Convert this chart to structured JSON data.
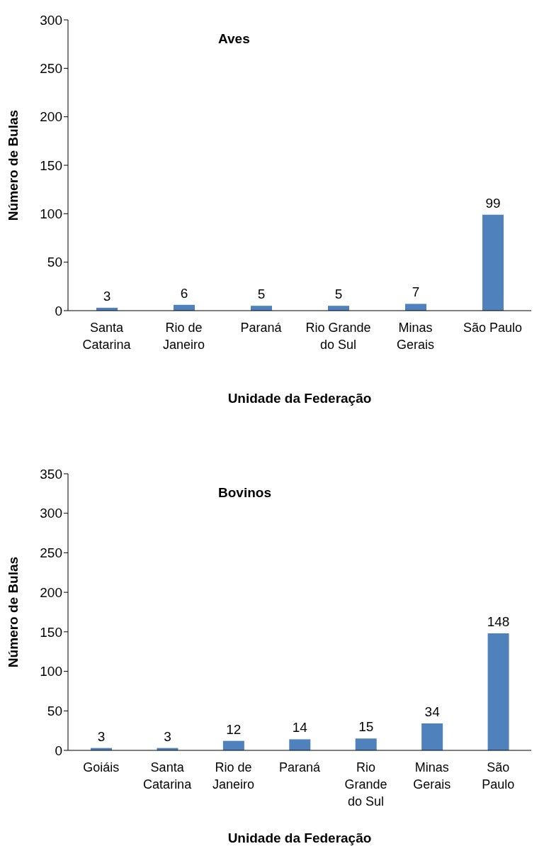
{
  "chart_data": [
    {
      "type": "bar",
      "title": "Aves",
      "xlabel": "Unidade da Federação",
      "ylabel": "Número de Bulas",
      "categories": [
        "Santa Catarina",
        "Rio de Janeiro",
        "Paraná",
        "Rio Grande do Sul",
        "Minas Gerais",
        "São Paulo"
      ],
      "values": [
        3,
        6,
        5,
        5,
        7,
        99
      ],
      "color": "#4f81bd",
      "ylim": [
        0,
        300
      ],
      "yticks": [
        0,
        50,
        100,
        150,
        200,
        250,
        300
      ],
      "grid": false,
      "data_labels": true
    },
    {
      "type": "bar",
      "title": "Bovinos",
      "xlabel": "Unidade da Federação",
      "ylabel": "Número de Bulas",
      "categories": [
        "Goiáis",
        "Santa Catarina",
        "Rio de Janeiro",
        "Paraná",
        "Rio Grande do Sul",
        "Minas Gerais",
        "São Paulo"
      ],
      "values": [
        3,
        3,
        12,
        14,
        15,
        34,
        148
      ],
      "color": "#4f81bd",
      "ylim": [
        0,
        350
      ],
      "yticks": [
        0,
        50,
        100,
        150,
        200,
        250,
        300,
        350
      ],
      "grid": false,
      "data_labels": true
    }
  ]
}
